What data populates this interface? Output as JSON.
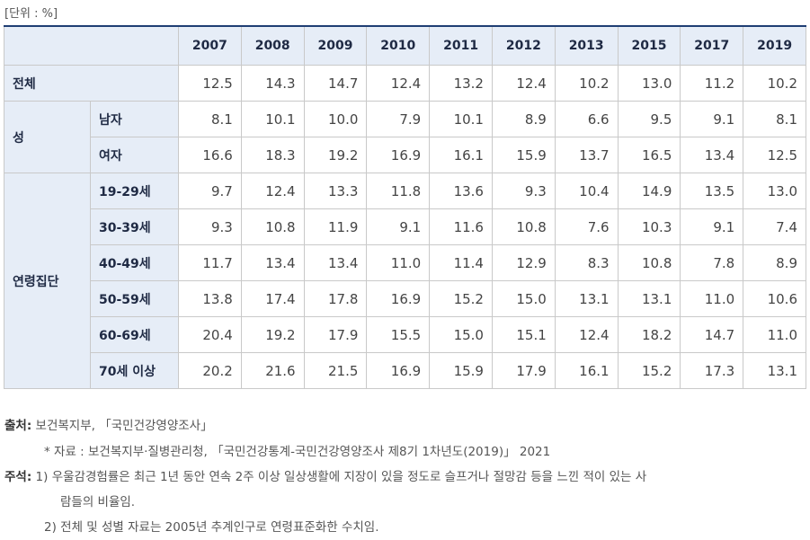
{
  "unit": "[단위 : %]",
  "table": {
    "years": [
      "2007",
      "2008",
      "2009",
      "2010",
      "2011",
      "2012",
      "2013",
      "2015",
      "2017",
      "2019"
    ],
    "total": {
      "label": "전체",
      "values": [
        "12.5",
        "14.3",
        "14.7",
        "12.4",
        "13.2",
        "12.4",
        "10.2",
        "13.0",
        "11.2",
        "10.2"
      ]
    },
    "sex": {
      "group_label": "성",
      "rows": [
        {
          "label": "남자",
          "values": [
            "8.1",
            "10.1",
            "10.0",
            "7.9",
            "10.1",
            "8.9",
            "6.6",
            "9.5",
            "9.1",
            "8.1"
          ]
        },
        {
          "label": "여자",
          "values": [
            "16.6",
            "18.3",
            "19.2",
            "16.9",
            "16.1",
            "15.9",
            "13.7",
            "16.5",
            "13.4",
            "12.5"
          ]
        }
      ]
    },
    "age": {
      "group_label": "연령집단",
      "rows": [
        {
          "label": "19-29세",
          "values": [
            "9.7",
            "12.4",
            "13.3",
            "11.8",
            "13.6",
            "9.3",
            "10.4",
            "14.9",
            "13.5",
            "13.0"
          ]
        },
        {
          "label": "30-39세",
          "values": [
            "9.3",
            "10.8",
            "11.9",
            "9.1",
            "11.6",
            "10.8",
            "7.6",
            "10.3",
            "9.1",
            "7.4"
          ]
        },
        {
          "label": "40-49세",
          "values": [
            "11.7",
            "13.4",
            "13.4",
            "11.0",
            "11.4",
            "12.9",
            "8.3",
            "10.8",
            "7.8",
            "8.9"
          ]
        },
        {
          "label": "50-59세",
          "values": [
            "13.8",
            "17.4",
            "17.8",
            "16.9",
            "15.2",
            "15.0",
            "13.1",
            "13.1",
            "11.0",
            "10.6"
          ]
        },
        {
          "label": "60-69세",
          "values": [
            "20.4",
            "19.2",
            "17.9",
            "15.5",
            "15.0",
            "15.1",
            "12.4",
            "18.2",
            "14.7",
            "11.0"
          ]
        },
        {
          "label": "70세 이상",
          "values": [
            "20.2",
            "21.6",
            "21.5",
            "16.9",
            "15.9",
            "17.9",
            "16.1",
            "15.2",
            "17.3",
            "13.1"
          ]
        }
      ]
    }
  },
  "notes": {
    "source_label": "출처:",
    "source_text": "보건복지부, 「국민건강영양조사」",
    "source_sub": "* 자료 : 보건복지부·질병관리청, 「국민건강통계-국민건강영양조사 제8기 1차년도(2019)」 2021",
    "remark_label": "주석:",
    "remark_1": "1) 우울감경험률은 최근 1년 동안 연속 2주 이상 일상생활에 지장이 있을 정도로 슬프거나 절망감 등을 느낀 적이 있는 사",
    "remark_1_cont": "람들의 비율임.",
    "remark_2": "2) 전체 및 성별 자료는 2005년 추계인구로 연령표준화한 수치임."
  }
}
